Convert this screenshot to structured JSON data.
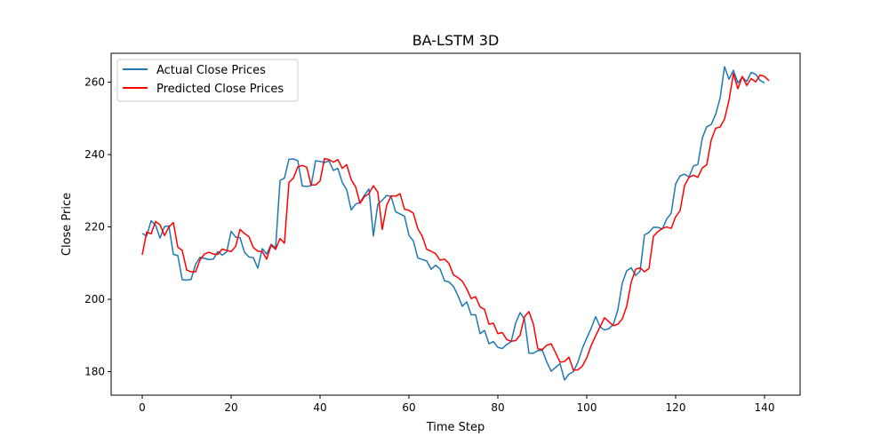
{
  "chart_data": {
    "type": "line",
    "title": "BA-LSTM 3D",
    "xlabel": "Time Step",
    "ylabel": "Close Price",
    "xlim": [
      -7,
      148
    ],
    "ylim": [
      173.5,
      268
    ],
    "xticks": [
      0,
      20,
      40,
      60,
      80,
      100,
      120,
      140
    ],
    "yticks": [
      180,
      200,
      220,
      240,
      260
    ],
    "grid": false,
    "legend_position": "top-left",
    "series": [
      {
        "name": "Actual Close Prices",
        "color": "#1f77b4",
        "values": [
          218.2,
          217.5,
          221.7,
          220.5,
          216.9,
          220.1,
          220.3,
          212.4,
          212.1,
          205.4,
          205.3,
          205.5,
          209.7,
          211.6,
          211.3,
          211.0,
          211.1,
          213.2,
          212.2,
          213.1,
          218.8,
          217.2,
          217.0,
          213.0,
          211.7,
          211.5,
          208.6,
          214.0,
          212.5,
          215.2,
          214.2,
          232.8,
          233.5,
          238.7,
          238.8,
          238.3,
          231.3,
          231.2,
          231.4,
          238.3,
          238.1,
          237.8,
          238.3,
          235.6,
          236.2,
          232.3,
          230.3,
          224.7,
          226.3,
          226.8,
          228.8,
          230.5,
          217.5,
          226.3,
          227.4,
          228.7,
          228.4,
          224.2,
          223.6,
          223.0,
          217.7,
          216.1,
          211.4,
          211.0,
          210.6,
          208.3,
          209.4,
          208.4,
          205.1,
          204.8,
          203.6,
          201.1,
          198.1,
          199.3,
          195.7,
          195.7,
          190.5,
          191.4,
          187.7,
          188.3,
          186.7,
          186.4,
          187.5,
          188.3,
          193.4,
          196.3,
          194.5,
          185.1,
          185.1,
          185.8,
          185.9,
          182.7,
          180.1,
          181.2,
          182.2,
          177.7,
          179.3,
          180.0,
          182.6,
          186.4,
          189.3,
          192.0,
          195.2,
          192.4,
          191.5,
          191.9,
          193.1,
          197.1,
          204.5,
          207.9,
          208.7,
          206.6,
          207.8,
          217.8,
          218.5,
          219.9,
          219.9,
          219.4,
          222.2,
          223.8,
          231.9,
          234.1,
          234.6,
          233.8,
          236.8,
          237.3,
          244.6,
          247.7,
          248.3,
          251.1,
          255.6,
          264.3,
          260.8,
          263.3,
          259.8,
          261.4,
          260.2,
          262.7,
          262.2,
          260.5,
          259.8
        ]
      },
      {
        "name": "Predicted Close Prices",
        "color": "#ff0000",
        "values": [
          212.3,
          218.6,
          218.1,
          221.5,
          220.6,
          217.6,
          220.0,
          221.2,
          214.4,
          213.5,
          208.1,
          207.6,
          207.6,
          210.9,
          212.5,
          213.0,
          212.5,
          212.4,
          213.9,
          213.5,
          213.2,
          214.6,
          219.3,
          218.2,
          217.3,
          214.3,
          213.3,
          213.2,
          211.1,
          215.0,
          213.8,
          216.8,
          215.5,
          232.3,
          233.5,
          236.6,
          237.0,
          236.5,
          231.6,
          231.6,
          232.7,
          238.9,
          238.6,
          237.9,
          238.6,
          236.2,
          237.2,
          233.1,
          231.1,
          226.5,
          228.4,
          229.2,
          231.4,
          229.6,
          219.3,
          226.0,
          228.6,
          228.5,
          229.2,
          224.9,
          224.6,
          223.8,
          219.5,
          217.4,
          213.8,
          213.3,
          212.6,
          210.8,
          211.1,
          209.9,
          206.8,
          206.0,
          205.0,
          202.9,
          200.2,
          200.7,
          197.9,
          197.2,
          193.1,
          193.4,
          190.5,
          190.8,
          188.9,
          188.4,
          188.6,
          190.1,
          195.2,
          196.6,
          193.1,
          186.3,
          186.1,
          187.3,
          187.7,
          185.2,
          182.6,
          182.8,
          184.0,
          180.4,
          180.5,
          181.5,
          183.8,
          187.2,
          189.9,
          192.4,
          194.9,
          193.8,
          192.7,
          193.1,
          194.6,
          198.1,
          204.7,
          208.3,
          208.7,
          207.6,
          208.5,
          217.4,
          218.7,
          219.6,
          220.0,
          219.6,
          222.8,
          224.5,
          231.4,
          233.7,
          234.3,
          233.7,
          236.3,
          237.2,
          244.0,
          247.3,
          247.6,
          249.8,
          255.0,
          262.4,
          258.2,
          261.6,
          259.1,
          261.0,
          260.1,
          262.0,
          261.6,
          260.4
        ]
      }
    ]
  }
}
